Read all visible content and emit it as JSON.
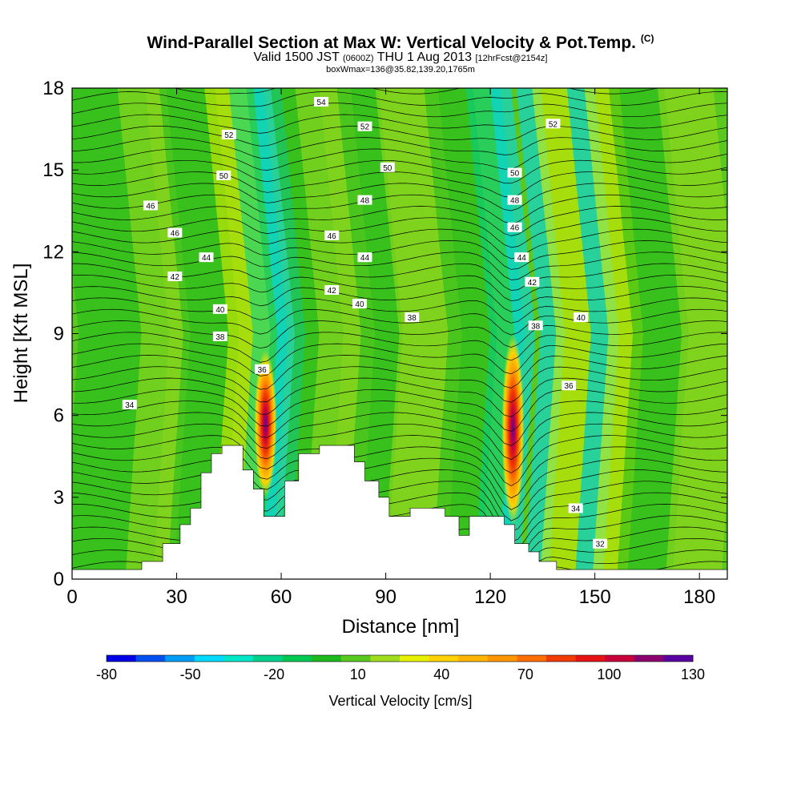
{
  "header": {
    "title": "Wind-Parallel Section at Max W: Vertical Velocity & Pot.Temp.",
    "title_mark": "(C)",
    "subtitle_main": "Valid 1500 JST",
    "subtitle_z": "(0600Z)",
    "subtitle_day": "THU 1 Aug 2013",
    "subtitle_fcst": "[12hrFcst@2154z]",
    "info_line": "boxWmax=136@35.82,139.20,1765m"
  },
  "chart_data": {
    "type": "heatmap",
    "xlabel": "Distance [nm]",
    "ylabel": "Height [Kft MSL]",
    "xlim": [
      0,
      188
    ],
    "ylim": [
      0,
      18
    ],
    "xticks": [
      0,
      30,
      60,
      90,
      120,
      150,
      180
    ],
    "yticks": [
      0,
      3,
      6,
      9,
      12,
      15,
      18
    ],
    "colorbar": {
      "label": "Vertical Velocity [cm/s]",
      "tick_labels": [
        "-80",
        "-50",
        "-20",
        "10",
        "40",
        "70",
        "100",
        "130"
      ],
      "tick_values": [
        -80,
        -50,
        -20,
        10,
        40,
        70,
        100,
        130
      ],
      "colors": [
        "#0000e6",
        "#0050f0",
        "#009bf5",
        "#00d9ff",
        "#00e6c8",
        "#00d28c",
        "#00c850",
        "#1eb91e",
        "#5ac81e",
        "#a0dc1e",
        "#e6f000",
        "#ffd200",
        "#ffb400",
        "#ff9600",
        "#ff6e00",
        "#f03c00",
        "#e61414",
        "#c8003c",
        "#8c006e",
        "#5a00a0"
      ]
    },
    "terrain": [
      [
        0,
        0.35
      ],
      [
        20,
        0.35
      ],
      [
        20,
        0.65
      ],
      [
        26,
        0.65
      ],
      [
        26,
        1.3
      ],
      [
        31,
        1.3
      ],
      [
        31,
        2
      ],
      [
        34,
        2
      ],
      [
        34,
        2.6
      ],
      [
        37,
        2.6
      ],
      [
        37,
        3.9
      ],
      [
        40,
        3.9
      ],
      [
        40,
        4.6
      ],
      [
        43,
        4.6
      ],
      [
        43,
        4.9
      ],
      [
        49,
        4.9
      ],
      [
        49,
        4
      ],
      [
        52,
        4
      ],
      [
        52,
        3.3
      ],
      [
        55,
        3.3
      ],
      [
        55,
        2.3
      ],
      [
        61,
        2.3
      ],
      [
        61,
        3.6
      ],
      [
        65,
        3.6
      ],
      [
        65,
        4.6
      ],
      [
        71,
        4.6
      ],
      [
        71,
        4.9
      ],
      [
        81,
        4.9
      ],
      [
        81,
        4.3
      ],
      [
        84,
        4.3
      ],
      [
        84,
        3.6
      ],
      [
        88,
        3.6
      ],
      [
        88,
        3
      ],
      [
        91,
        3
      ],
      [
        91,
        2.3
      ],
      [
        97,
        2.3
      ],
      [
        97,
        2.6
      ],
      [
        107,
        2.6
      ],
      [
        107,
        2.3
      ],
      [
        111,
        2.3
      ],
      [
        111,
        1.6
      ],
      [
        114,
        1.6
      ],
      [
        114,
        2.3
      ],
      [
        124,
        2.3
      ],
      [
        124,
        2
      ],
      [
        127,
        2
      ],
      [
        127,
        1.3
      ],
      [
        131,
        1.3
      ],
      [
        131,
        1
      ],
      [
        134,
        1
      ],
      [
        134,
        0.65
      ],
      [
        139,
        0.65
      ],
      [
        139,
        0.35
      ],
      [
        188,
        0.35
      ]
    ],
    "updraft_bands": [
      {
        "x": 55.5,
        "y_bottom": 3,
        "y_top": 8.4,
        "peak_w": 100
      },
      {
        "x": 126.5,
        "y_bottom": 2,
        "y_top": 9,
        "peak_w": 136
      }
    ],
    "isentrope_labels": [
      {
        "text": "34",
        "x": 16.5,
        "y": 6.4
      },
      {
        "text": "36",
        "x": 54.5,
        "y": 7.7
      },
      {
        "text": "38",
        "x": 42.5,
        "y": 8.9
      },
      {
        "text": "40",
        "x": 42.5,
        "y": 9.9
      },
      {
        "text": "42",
        "x": 29.5,
        "y": 11.1
      },
      {
        "text": "44",
        "x": 38.5,
        "y": 11.8
      },
      {
        "text": "46",
        "x": 29.5,
        "y": 12.7
      },
      {
        "text": "46",
        "x": 22.5,
        "y": 13.7
      },
      {
        "text": "50",
        "x": 43.5,
        "y": 14.8
      },
      {
        "text": "52",
        "x": 45,
        "y": 16.3
      },
      {
        "text": "54",
        "x": 71.5,
        "y": 17.5
      },
      {
        "text": "52",
        "x": 84,
        "y": 16.6
      },
      {
        "text": "50",
        "x": 90.5,
        "y": 15.1
      },
      {
        "text": "48",
        "x": 84,
        "y": 13.9
      },
      {
        "text": "46",
        "x": 74.5,
        "y": 12.6
      },
      {
        "text": "44",
        "x": 84,
        "y": 11.8
      },
      {
        "text": "42",
        "x": 74.5,
        "y": 10.6
      },
      {
        "text": "40",
        "x": 82.5,
        "y": 10.1
      },
      {
        "text": "38",
        "x": 97.5,
        "y": 9.6
      },
      {
        "text": "50",
        "x": 127,
        "y": 14.9
      },
      {
        "text": "48",
        "x": 127,
        "y": 13.9
      },
      {
        "text": "46",
        "x": 127,
        "y": 12.9
      },
      {
        "text": "44",
        "x": 129,
        "y": 11.8
      },
      {
        "text": "42",
        "x": 132,
        "y": 10.9
      },
      {
        "text": "38",
        "x": 133,
        "y": 9.3
      },
      {
        "text": "40",
        "x": 146,
        "y": 9.6
      },
      {
        "text": "52",
        "x": 138,
        "y": 16.7
      },
      {
        "text": "36",
        "x": 142.5,
        "y": 7.1
      },
      {
        "text": "34",
        "x": 144.5,
        "y": 2.6
      },
      {
        "text": "32",
        "x": 151.5,
        "y": 1.3
      }
    ]
  }
}
